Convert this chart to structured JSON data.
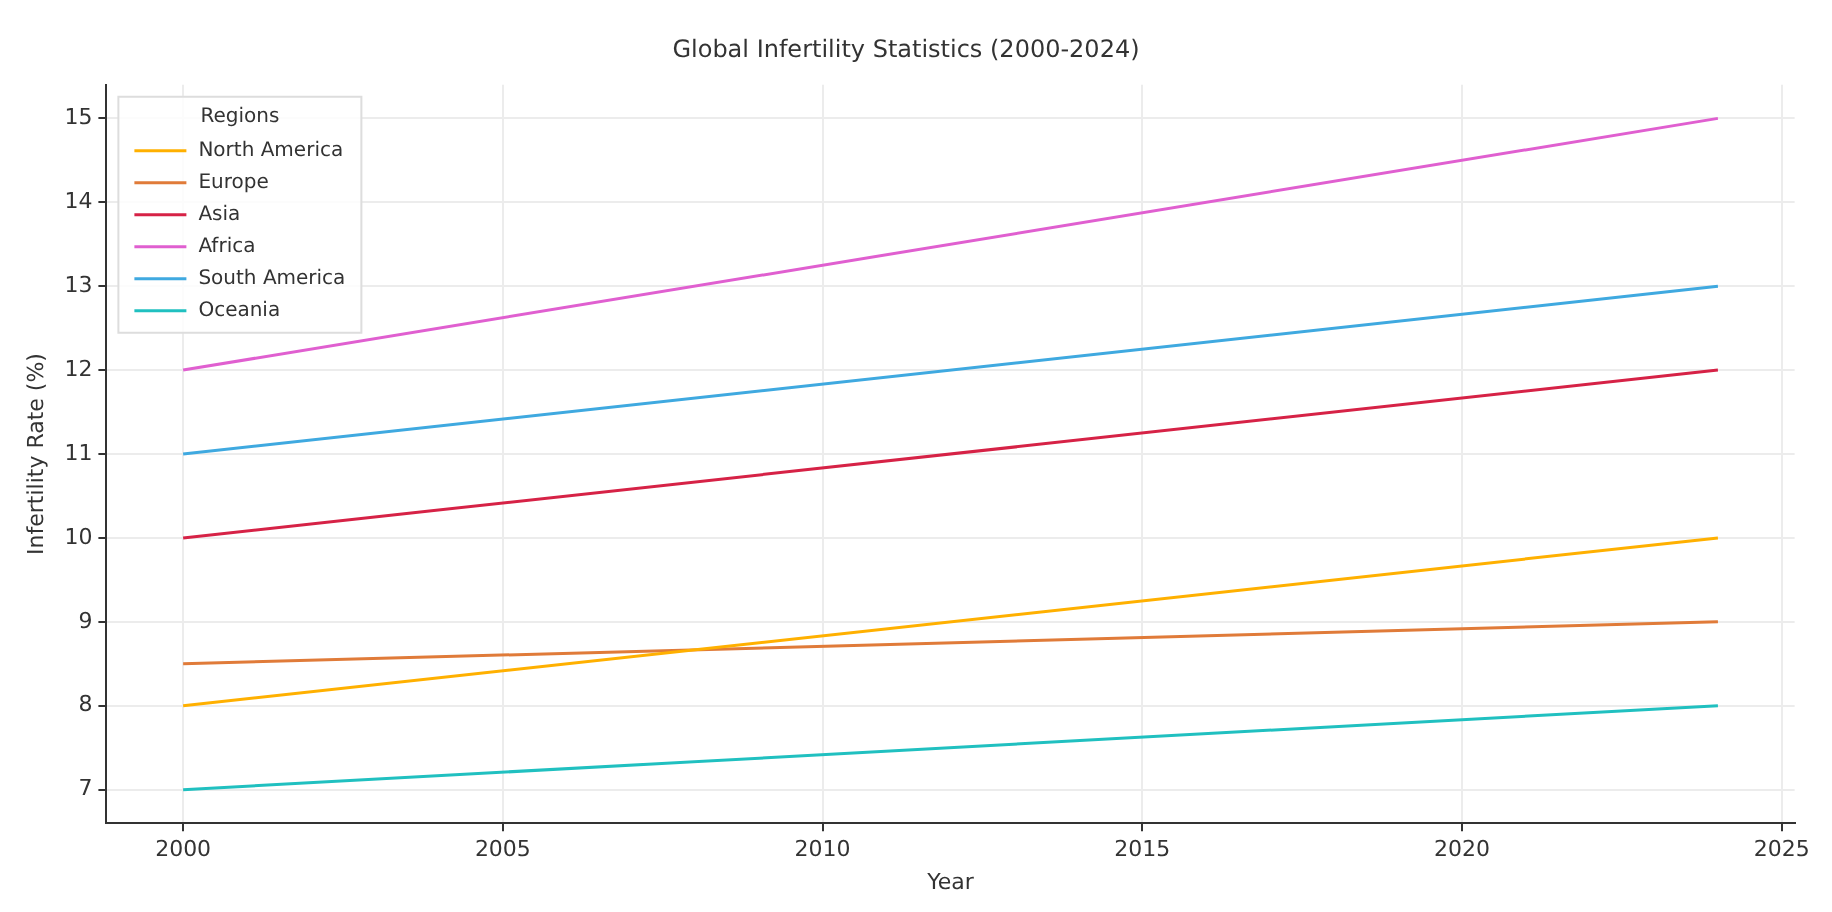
{
  "chart_data": {
    "type": "line",
    "title": "Global Infertility Statistics (2000-2024)",
    "xlabel": "Year",
    "ylabel": "Infertility Rate (%)",
    "legend_title": "Regions",
    "legend": "top left",
    "grid": true,
    "marker": "none",
    "line_style": "solid",
    "x": [
      2000,
      2024
    ],
    "series": [
      {
        "name": "North America",
        "color": "#ffb000",
        "values": [
          8,
          10
        ]
      },
      {
        "name": "Europe",
        "color": "#e07b39",
        "values": [
          8.5,
          9
        ]
      },
      {
        "name": "Asia",
        "color": "#d62246",
        "values": [
          10,
          12
        ]
      },
      {
        "name": "Africa",
        "color": "#e05fd0",
        "values": [
          12,
          15
        ]
      },
      {
        "name": "South America",
        "color": "#3fa9e0",
        "values": [
          11,
          13
        ]
      },
      {
        "name": "Oceania",
        "color": "#20c0c0",
        "values": [
          7,
          8
        ]
      }
    ],
    "xlim": [
      1998.8,
      2025.2
    ],
    "xticks": [
      2000,
      2005,
      2010,
      2015,
      2020,
      2025
    ],
    "ylim": [
      6.6,
      15.4
    ],
    "yticks": [
      7,
      8,
      9,
      10,
      11,
      12,
      13,
      14,
      15
    ]
  }
}
